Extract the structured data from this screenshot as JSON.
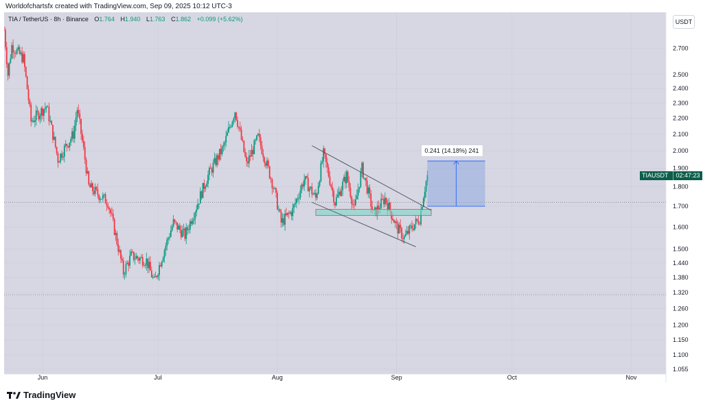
{
  "caption": "Worldofchartsfx created with TradingView.com, Sep 09, 2025 10:12 UTC-3",
  "legend": {
    "symbol": "TIA / TetherUS · 8h · Binance",
    "open_label": "O",
    "open": "1.764",
    "high_label": "H",
    "high": "1.940",
    "low_label": "L",
    "low": "1.763",
    "close_label": "C",
    "close": "1.862",
    "change": "+0.099 (+5.62%)"
  },
  "currency_button": "USDT",
  "price_tag": {
    "ticker": "TIAUSDT",
    "countdown": "02:47:23"
  },
  "measure": {
    "label": "0.241 (14.18%) 241"
  },
  "brand": "TradingView",
  "colors": {
    "up": "#089981",
    "down": "#f23645",
    "background": "#d6d7e2",
    "measure_fill": "#8fa9e0"
  },
  "chart_data": {
    "type": "candlestick",
    "y_scale": "log",
    "x_ticks": [
      "Jun",
      "Jul",
      "Aug",
      "Sep",
      "Oct",
      "Nov"
    ],
    "y_ticks": [
      "2.700",
      "2.500",
      "2.400",
      "2.300",
      "2.200",
      "2.100",
      "2.000",
      "1.900",
      "1.800",
      "1.700",
      "1.600",
      "1.500",
      "1.440",
      "1.380",
      "1.320",
      "1.260",
      "1.200",
      "1.150",
      "1.100",
      "1.055"
    ],
    "ylim": [
      1.04,
      3.0
    ],
    "dates": [
      "2025-05-22",
      "2025-11-10"
    ],
    "last_price": 1.862,
    "levels": [
      1.72,
      1.312
    ],
    "anchors": [
      [
        "2025-05-22",
        2.85
      ],
      [
        "2025-05-23",
        2.5
      ],
      [
        "2025-05-24",
        2.72
      ],
      [
        "2025-05-27",
        2.62
      ],
      [
        "2025-05-29",
        2.18
      ],
      [
        "2025-06-02",
        2.28
      ],
      [
        "2025-06-05",
        1.95
      ],
      [
        "2025-06-09",
        2.1
      ],
      [
        "2025-06-10",
        2.26
      ],
      [
        "2025-06-13",
        1.8
      ],
      [
        "2025-06-18",
        1.72
      ],
      [
        "2025-06-22",
        1.4
      ],
      [
        "2025-06-24",
        1.47
      ],
      [
        "2025-06-28",
        1.45
      ],
      [
        "2025-06-30",
        1.36
      ],
      [
        "2025-07-05",
        1.62
      ],
      [
        "2025-07-08",
        1.56
      ],
      [
        "2025-07-11",
        1.7
      ],
      [
        "2025-07-14",
        1.86
      ],
      [
        "2025-07-18",
        2.02
      ],
      [
        "2025-07-21",
        2.25
      ],
      [
        "2025-07-24",
        1.92
      ],
      [
        "2025-07-27",
        2.08
      ],
      [
        "2025-07-31",
        1.8
      ],
      [
        "2025-08-02",
        1.62
      ],
      [
        "2025-08-05",
        1.68
      ],
      [
        "2025-08-08",
        1.84
      ],
      [
        "2025-08-11",
        1.74
      ],
      [
        "2025-08-13",
        1.98
      ],
      [
        "2025-08-16",
        1.72
      ],
      [
        "2025-08-19",
        1.86
      ],
      [
        "2025-08-21",
        1.68
      ],
      [
        "2025-08-23",
        1.9
      ],
      [
        "2025-08-26",
        1.66
      ],
      [
        "2025-08-29",
        1.74
      ],
      [
        "2025-09-01",
        1.6
      ],
      [
        "2025-09-03",
        1.55
      ],
      [
        "2025-09-05",
        1.6
      ],
      [
        "2025-09-07",
        1.64
      ],
      [
        "2025-09-08",
        1.76
      ],
      [
        "2025-09-09",
        1.862
      ]
    ],
    "trendlines": [
      {
        "from": [
          "2025-08-10",
          2.03
        ],
        "to": [
          "2025-09-10",
          1.68
        ]
      },
      {
        "from": [
          "2025-08-10",
          1.72
        ],
        "to": [
          "2025-09-06",
          1.51
        ]
      }
    ],
    "zone": {
      "from": "2025-08-11",
      "to": "2025-09-10",
      "low": 1.655,
      "high": 1.685
    },
    "measure_range": {
      "from": "2025-09-09",
      "to": "2025-09-24",
      "low": 1.7,
      "high": 1.941
    }
  }
}
